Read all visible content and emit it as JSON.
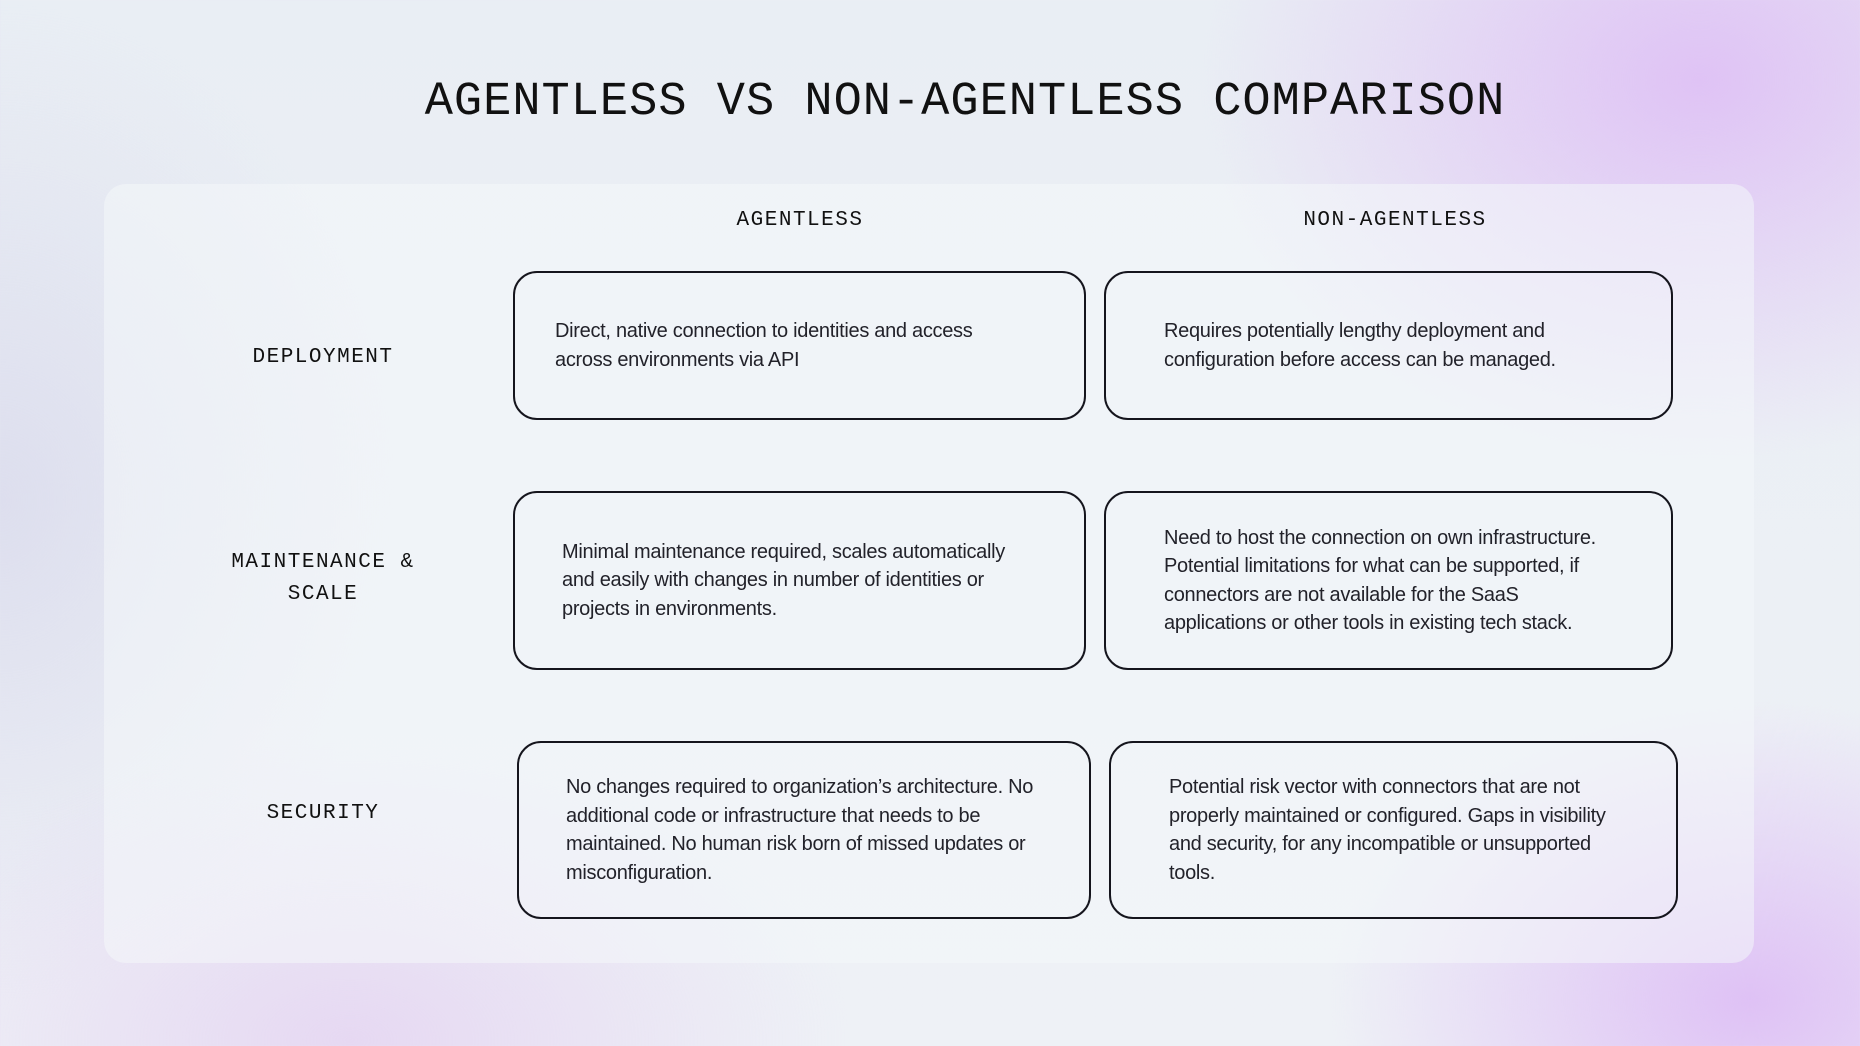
{
  "title": "AGENTLESS VS NON-AGENTLESS COMPARISON",
  "columns": [
    "AGENTLESS",
    "NON-AGENTLESS"
  ],
  "rows": [
    {
      "label": "DEPLOYMENT",
      "agentless": "Direct, native connection to identities and access across environments via API",
      "non_agentless": "Requires potentially lengthy deployment and configuration before access can be managed."
    },
    {
      "label": "MAINTENANCE & SCALE",
      "agentless": "Minimal maintenance required, scales automatically and easily with changes in number of identities or projects in environments.",
      "non_agentless": "Need to host the connection on own infrastructure. Potential limitations for what can be supported, if connectors are not available for the SaaS applications or other tools in existing tech stack."
    },
    {
      "label": "SECURITY",
      "agentless": "No changes required to organization’s architecture. No additional code or infrastructure that needs to be maintained. No human risk born of missed updates or misconfiguration.",
      "non_agentless": "Potential risk vector with connectors that are not properly maintained or configured. Gaps in visibility and security, for any incompatible or unsupported tools."
    }
  ]
}
